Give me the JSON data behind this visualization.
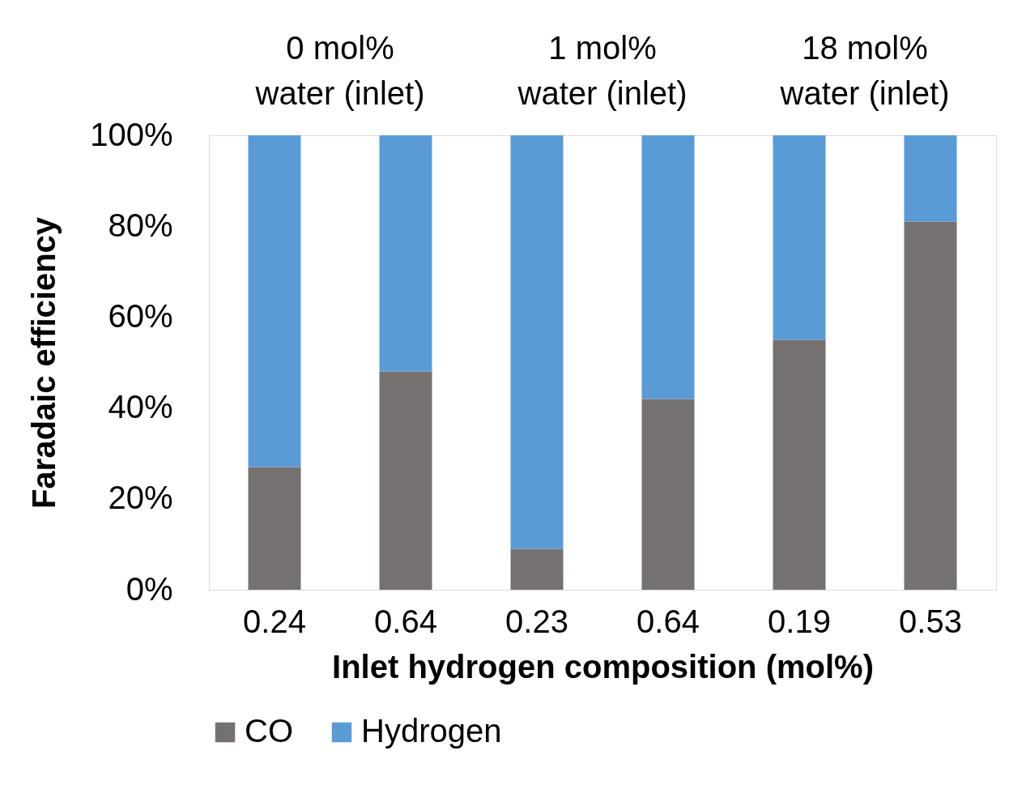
{
  "chart_data": {
    "type": "bar",
    "stacked": true,
    "xlabel": "Inlet hydrogen composition (mol%)",
    "ylabel": "Faradaic efficiency",
    "categories": [
      "0.24",
      "0.64",
      "0.23",
      "0.64",
      "0.19",
      "0.53"
    ],
    "series": [
      {
        "name": "CO",
        "color": "#767171",
        "values": [
          27,
          48,
          9,
          42,
          55,
          81
        ]
      },
      {
        "name": "Hydrogen",
        "color": "#5b9bd5",
        "values": [
          73,
          52,
          91,
          58,
          45,
          19
        ]
      }
    ],
    "ylim": [
      0,
      100
    ],
    "yticks": [
      {
        "value": 0,
        "label": "0%"
      },
      {
        "value": 20,
        "label": "20%"
      },
      {
        "value": 40,
        "label": "40%"
      },
      {
        "value": 60,
        "label": "60%"
      },
      {
        "value": 80,
        "label": "80%"
      },
      {
        "value": 100,
        "label": "100%"
      }
    ],
    "annotations": [
      "0 mol%\nwater (inlet)",
      "1 mol%\nwater (inlet)",
      "18 mol%\nwater (inlet)"
    ],
    "grid": false,
    "legend": "bottom"
  }
}
